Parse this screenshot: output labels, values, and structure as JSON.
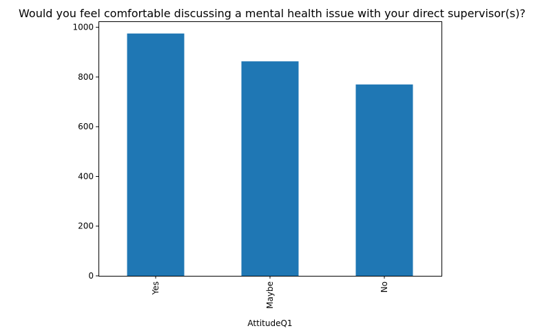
{
  "chart_data": {
    "type": "bar",
    "title": "Would you feel comfortable discussing a mental health issue with your direct supervisor(s)?",
    "xlabel": "AttitudeQ1",
    "ylabel": "",
    "categories": [
      "Yes",
      "Maybe",
      "No"
    ],
    "values": [
      975,
      863,
      770
    ],
    "ylim": [
      0,
      1024
    ],
    "yticks": [
      0,
      200,
      400,
      600,
      800,
      1000
    ],
    "bar_color": "#1f77b4",
    "grid": false,
    "legend": "none"
  }
}
